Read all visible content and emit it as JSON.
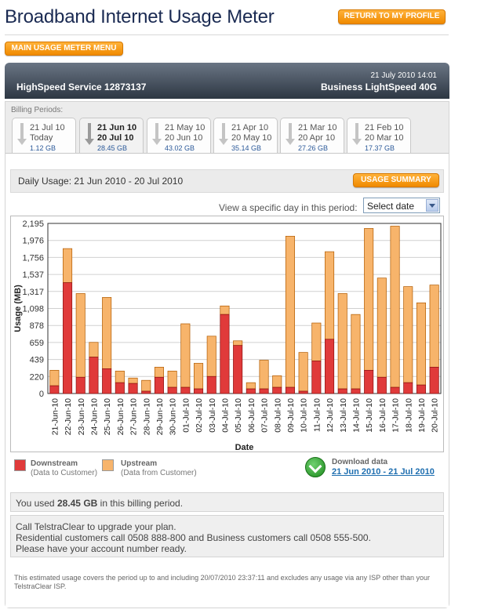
{
  "header": {
    "title": "Broadband Internet Usage Meter",
    "return_label": "RETURN TO MY PROFILE",
    "menu_label": "MAIN USAGE METER MENU"
  },
  "service": {
    "name": "HighSpeed Service 12873137",
    "datetime": "21 July 2010 14:01",
    "plan": "Business LightSpeed 40G",
    "bar_color": "#3a4452"
  },
  "billing": {
    "label": "Billing Periods:",
    "periods": [
      {
        "line1": "21 Jul 10",
        "line2": "Today",
        "usage": "1.12 GB",
        "active": false
      },
      {
        "line1": "21 Jun 10",
        "line2": "20 Jul 10",
        "usage": "28.45 GB",
        "active": true
      },
      {
        "line1": "21 May 10",
        "line2": "20 Jun 10",
        "usage": "43.02 GB",
        "active": false
      },
      {
        "line1": "21 Apr 10",
        "line2": "20 May 10",
        "usage": "35.14 GB",
        "active": false
      },
      {
        "line1": "21 Mar 10",
        "line2": "20 Apr 10",
        "usage": "27.26 GB",
        "active": false
      },
      {
        "line1": "21 Feb 10",
        "line2": "20 Mar 10",
        "usage": "17.37 GB",
        "active": false
      }
    ]
  },
  "daily": {
    "title": "Daily Usage: 21 Jun 2010 - 20 Jul 2010",
    "summary_label": "USAGE SUMMARY",
    "view_label": "View a specific day in this period:",
    "select_value": "Select date"
  },
  "legend": {
    "down_name": "Downstream",
    "down_sub": "(Data to Customer)",
    "up_name": "Upstream",
    "up_sub": "(Data from Customer)"
  },
  "download": {
    "title": "Download data",
    "link": "21 Jun 2010 - 21 Jul 2010"
  },
  "usage_summary": {
    "prefix": "You used ",
    "amount": "28.45 GB",
    "suffix": " in this billing period."
  },
  "call": {
    "line1": "Call TelstraClear to upgrade your plan.",
    "line2": "Residential customers call 0508 888-800 and Business customers call 0508 555-500.",
    "line3": "Please have your account number ready."
  },
  "footnote": "This estimated usage covers the period up to and including 20/07/2010 23:37:11 and excludes any usage via any ISP other than your TelstraClear ISP.",
  "chart_data": {
    "type": "bar",
    "stacked": true,
    "xlabel": "Date",
    "ylabel": "Usage (MB)",
    "ylim": [
      0,
      2195
    ],
    "yticks": [
      "0",
      "220",
      "439",
      "659",
      "878",
      "1,098",
      "1,317",
      "1,537",
      "1,756",
      "1,976",
      "2,195"
    ],
    "grid": true,
    "colors": {
      "downstream": "#e03a3a",
      "upstream": "#f7b46b"
    },
    "categories": [
      "21-Jun-10",
      "22-Jun-10",
      "23-Jun-10",
      "24-Jun-10",
      "25-Jun-10",
      "26-Jun-10",
      "27-Jun-10",
      "28-Jun-10",
      "29-Jun-10",
      "30-Jun-10",
      "01-Jul-10",
      "02-Jul-10",
      "03-Jul-10",
      "04-Jul-10",
      "05-Jul-10",
      "06-Jul-10",
      "07-Jul-10",
      "08-Jul-10",
      "09-Jul-10",
      "10-Jul-10",
      "11-Jul-10",
      "12-Jul-10",
      "13-Jul-10",
      "14-Jul-10",
      "15-Jul-10",
      "16-Jul-10",
      "17-Jul-10",
      "18-Jul-10",
      "19-Jul-10",
      "20-Jul-10"
    ],
    "series": [
      {
        "name": "Downstream",
        "values": [
          100,
          1430,
          210,
          470,
          320,
          140,
          130,
          30,
          210,
          80,
          80,
          60,
          220,
          1020,
          620,
          60,
          60,
          80,
          80,
          30,
          420,
          700,
          60,
          60,
          300,
          210,
          80,
          140,
          110,
          340
        ]
      },
      {
        "name": "Upstream",
        "values": [
          200,
          440,
          1080,
          190,
          920,
          150,
          70,
          140,
          130,
          210,
          820,
          330,
          520,
          110,
          60,
          80,
          370,
          150,
          1950,
          500,
          490,
          1130,
          1230,
          960,
          1830,
          1280,
          2080,
          1240,
          1060,
          1060
        ]
      }
    ]
  }
}
